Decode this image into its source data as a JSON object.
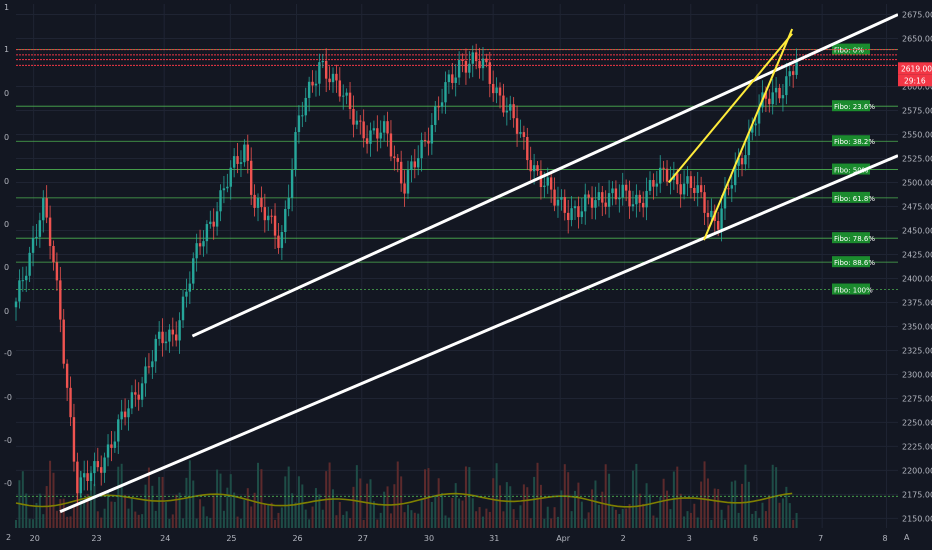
{
  "chart_data": {
    "type": "candlestick",
    "y_ticks": [
      2150,
      2175,
      2200,
      2225,
      2250,
      2275,
      2300,
      2325,
      2350,
      2375,
      2400,
      2425,
      2450,
      2475,
      2500,
      2525,
      2550,
      2575,
      2600,
      2650,
      2675
    ],
    "ylim": [
      2140,
      2686
    ],
    "x_ticks": [
      "20",
      "23",
      "24",
      "25",
      "26",
      "27",
      "30",
      "31",
      "Apr",
      "2",
      "3",
      "6",
      "7",
      "8"
    ],
    "left_axis_labels": [
      "1",
      "1",
      "0",
      "0",
      "0",
      "0",
      "0",
      "0",
      "-0",
      "-0",
      "-0",
      "-0",
      "-0",
      "-0"
    ],
    "fib_levels": [
      {
        "label": "Fibo:  0%",
        "value": 2638.5
      },
      {
        "label": "Fibo: 23.6%",
        "value": 2579.5
      },
      {
        "label": "Fibo: 38.2%",
        "value": 2543
      },
      {
        "label": "Fibo:  50%",
        "value": 2513.5
      },
      {
        "label": "Fibo: 61.8%",
        "value": 2484
      },
      {
        "label": "Fibo: 78.6%",
        "value": 2442
      },
      {
        "label": "Fibo: 88.6%",
        "value": 2417
      },
      {
        "label": "Fibo: 100%",
        "value": 2388.5
      }
    ],
    "resistance_lines": [
      2638.5,
      2633,
      2628,
      2622
    ],
    "support_line_value": 2173,
    "last_price": "2619.00",
    "countdown": "29:16",
    "grid": true,
    "channel_lines": [
      {
        "name": "upper-channel",
        "from": [
          0.2,
          2340
        ],
        "to": [
          1.0,
          2675
        ]
      },
      {
        "name": "lower-channel",
        "from": [
          0.05,
          2157
        ],
        "to": [
          1.0,
          2528
        ]
      }
    ],
    "wedge_lines": [
      {
        "name": "wedge-upper",
        "from": [
          0.74,
          2500
        ],
        "to": [
          0.88,
          2655
        ]
      },
      {
        "name": "wedge-lower",
        "from": [
          0.78,
          2440
        ],
        "to": [
          0.88,
          2660
        ]
      }
    ],
    "colors": {
      "up": "#26a69a",
      "down": "#ef5350",
      "fib": "#4caf50",
      "resistance": "#f23645",
      "channel": "#ffffff",
      "wedge": "#ffeb3b",
      "ma": "#808000"
    }
  },
  "axis_extras": {
    "left_bottom": "2",
    "right_bottom": "A"
  }
}
